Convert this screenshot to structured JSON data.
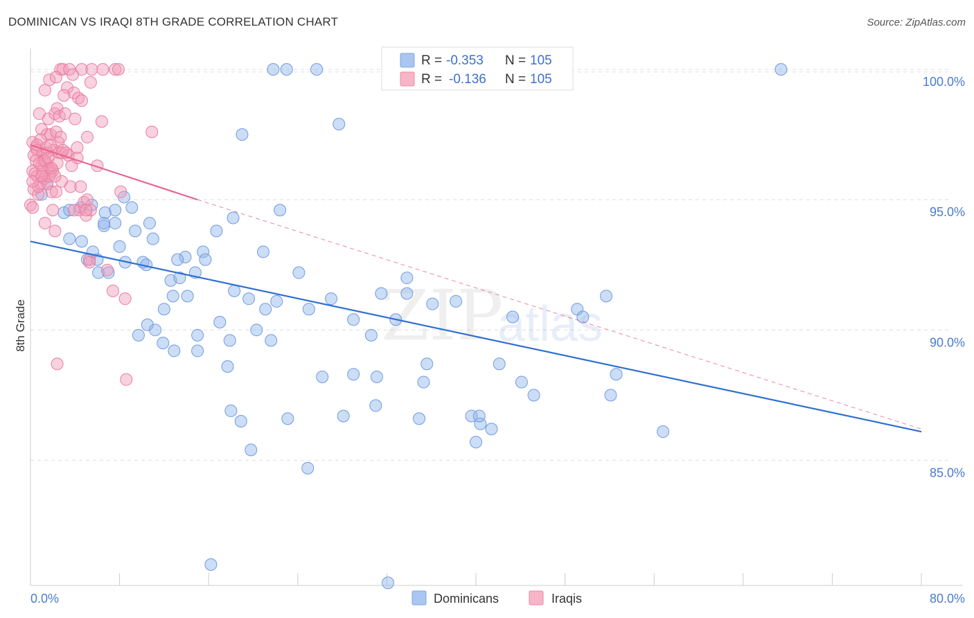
{
  "header": {
    "title": "DOMINICAN VS IRAQI 8TH GRADE CORRELATION CHART",
    "source": "Source: ZipAtlas.com"
  },
  "watermark": {
    "zip": "ZIP",
    "atlas": "atlas"
  },
  "legend": {
    "r_label": "R =",
    "n_label": "N =",
    "entries": [
      {
        "r": "-0.353",
        "n": "105",
        "color": "#a9c6f0"
      },
      {
        "r": "-0.136",
        "n": "105",
        "color": "#f7b6c8"
      }
    ]
  },
  "bottom_legend": [
    {
      "label": "Dominicans",
      "color": "#a9c6f0"
    },
    {
      "label": "Iraqis",
      "color": "#f7b6c8"
    }
  ],
  "colors": {
    "blue_point": "#8fb4ea",
    "blue_line": "#2f6fd0",
    "pink_point": "#f29bb7",
    "pink_line": "#e8668f",
    "grid": "#dddddd",
    "axis_text": "#4a7bd0"
  },
  "chart_data": {
    "type": "scatter",
    "title": "DOMINICAN VS IRAQI 8TH GRADE CORRELATION CHART",
    "xlabel": "",
    "ylabel": "8th Grade",
    "xlim": [
      0,
      80
    ],
    "ylim": [
      80.2,
      100.8
    ],
    "x_tick_labels": [
      "0.0%",
      "80.0%"
    ],
    "y_ticks": [
      85,
      90,
      95,
      100
    ],
    "y_tick_labels": [
      "85.0%",
      "90.0%",
      "95.0%",
      "100.0%"
    ],
    "grid": true,
    "series": [
      {
        "name": "Dominicans",
        "r": -0.353,
        "n": 105,
        "trend": {
          "x": [
            0,
            80
          ],
          "y": [
            93.4,
            86.1
          ],
          "style": "solid"
        },
        "points": [
          [
            21.8,
            100
          ],
          [
            23.0,
            100
          ],
          [
            25.7,
            100
          ],
          [
            32.6,
            100
          ],
          [
            67.4,
            100
          ],
          [
            27.7,
            97.9
          ],
          [
            19.0,
            97.5
          ],
          [
            1.5,
            95.6
          ],
          [
            1.0,
            95.2
          ],
          [
            8.4,
            95.1
          ],
          [
            3.0,
            94.5
          ],
          [
            3.5,
            94.6
          ],
          [
            4.5,
            94.7
          ],
          [
            5.5,
            94.8
          ],
          [
            7.6,
            94.6
          ],
          [
            9.1,
            94.7
          ],
          [
            6.7,
            94.5
          ],
          [
            18.2,
            94.3
          ],
          [
            22.4,
            94.6
          ],
          [
            6.6,
            94.0
          ],
          [
            7.6,
            94.1
          ],
          [
            9.4,
            93.8
          ],
          [
            10.7,
            94.1
          ],
          [
            11.0,
            93.5
          ],
          [
            16.7,
            93.8
          ],
          [
            3.5,
            93.5
          ],
          [
            4.6,
            93.4
          ],
          [
            8.0,
            93.2
          ],
          [
            15.5,
            93.0
          ],
          [
            20.9,
            93.0
          ],
          [
            5.1,
            92.7
          ],
          [
            6.0,
            92.7
          ],
          [
            6.1,
            92.2
          ],
          [
            8.5,
            92.6
          ],
          [
            10.1,
            92.6
          ],
          [
            13.9,
            92.8
          ],
          [
            15.7,
            92.7
          ],
          [
            7.0,
            92.2
          ],
          [
            12.6,
            91.9
          ],
          [
            13.4,
            92.0
          ],
          [
            14.8,
            92.2
          ],
          [
            24.1,
            92.2
          ],
          [
            33.8,
            92.0
          ],
          [
            12.8,
            91.3
          ],
          [
            14.1,
            91.3
          ],
          [
            19.6,
            91.2
          ],
          [
            22.1,
            91.1
          ],
          [
            31.5,
            91.4
          ],
          [
            33.8,
            91.4
          ],
          [
            38.2,
            91.1
          ],
          [
            49.1,
            90.8
          ],
          [
            49.6,
            90.5
          ],
          [
            51.7,
            91.3
          ],
          [
            12.0,
            90.8
          ],
          [
            21.1,
            90.8
          ],
          [
            25.0,
            90.8
          ],
          [
            10.5,
            90.2
          ],
          [
            11.2,
            90.0
          ],
          [
            17.0,
            90.3
          ],
          [
            20.3,
            90.0
          ],
          [
            29.0,
            90.4
          ],
          [
            32.8,
            90.4
          ],
          [
            9.7,
            89.8
          ],
          [
            15.0,
            89.8
          ],
          [
            30.6,
            89.8
          ],
          [
            11.9,
            89.5
          ],
          [
            12.9,
            89.2
          ],
          [
            17.9,
            89.6
          ],
          [
            21.6,
            89.6
          ],
          [
            15.0,
            89.2
          ],
          [
            17.7,
            88.6
          ],
          [
            26.2,
            88.2
          ],
          [
            29.0,
            88.3
          ],
          [
            31.1,
            88.2
          ],
          [
            35.6,
            88.7
          ],
          [
            42.1,
            88.7
          ],
          [
            35.3,
            88.0
          ],
          [
            44.1,
            88.0
          ],
          [
            45.2,
            87.5
          ],
          [
            52.1,
            87.5
          ],
          [
            52.6,
            88.3
          ],
          [
            31.0,
            87.1
          ],
          [
            18.0,
            86.9
          ],
          [
            18.9,
            86.5
          ],
          [
            23.1,
            86.6
          ],
          [
            28.1,
            86.7
          ],
          [
            34.9,
            86.6
          ],
          [
            39.6,
            86.7
          ],
          [
            40.4,
            86.4
          ],
          [
            40.3,
            86.7
          ],
          [
            41.4,
            86.2
          ],
          [
            40.0,
            85.7
          ],
          [
            56.8,
            86.1
          ],
          [
            19.8,
            85.4
          ],
          [
            24.9,
            84.7
          ],
          [
            10.4,
            92.5
          ],
          [
            13.2,
            92.7
          ],
          [
            6.6,
            94.1
          ],
          [
            18.3,
            91.5
          ],
          [
            5.6,
            93.0
          ],
          [
            43.3,
            90.5
          ],
          [
            27.0,
            91.2
          ],
          [
            36.1,
            91.0
          ],
          [
            16.2,
            81.0
          ],
          [
            32.1,
            80.3
          ]
        ]
      },
      {
        "name": "Iraqis",
        "r": -0.136,
        "n": 105,
        "trend": {
          "x": [
            0,
            15
          ],
          "y": [
            97.1,
            95.0
          ],
          "style": "solid",
          "extension": {
            "x": [
              15,
              80
            ],
            "y": [
              95.0,
              86.2
            ],
            "style": "dashed"
          }
        },
        "points": [
          [
            2.7,
            100
          ],
          [
            2.9,
            100
          ],
          [
            3.5,
            100
          ],
          [
            4.6,
            100
          ],
          [
            5.5,
            100
          ],
          [
            6.5,
            100
          ],
          [
            7.6,
            100
          ],
          [
            7.9,
            100
          ],
          [
            1.7,
            99.6
          ],
          [
            2.3,
            99.7
          ],
          [
            3.8,
            99.8
          ],
          [
            5.4,
            99.5
          ],
          [
            3.3,
            99.3
          ],
          [
            3.9,
            99.1
          ],
          [
            4.3,
            98.9
          ],
          [
            4.6,
            98.8
          ],
          [
            0.8,
            98.3
          ],
          [
            1.6,
            98.1
          ],
          [
            2.2,
            98.3
          ],
          [
            2.4,
            98.5
          ],
          [
            2.6,
            98.2
          ],
          [
            3.1,
            98.3
          ],
          [
            6.4,
            98.0
          ],
          [
            10.9,
            97.6
          ],
          [
            1.0,
            97.7
          ],
          [
            1.5,
            97.5
          ],
          [
            0.2,
            97.2
          ],
          [
            0.5,
            97.0
          ],
          [
            0.9,
            97.3
          ],
          [
            1.8,
            97.5
          ],
          [
            2.5,
            97.2
          ],
          [
            5.1,
            97.4
          ],
          [
            0.3,
            96.7
          ],
          [
            0.6,
            96.9
          ],
          [
            1.1,
            96.8
          ],
          [
            1.5,
            96.8
          ],
          [
            2.1,
            96.9
          ],
          [
            2.6,
            96.8
          ],
          [
            2.8,
            96.8
          ],
          [
            3.4,
            96.7
          ],
          [
            4.2,
            96.6
          ],
          [
            0.5,
            96.5
          ],
          [
            1.0,
            96.3
          ],
          [
            1.4,
            96.4
          ],
          [
            1.7,
            96.2
          ],
          [
            0.2,
            96.1
          ],
          [
            0.6,
            95.9
          ],
          [
            1.2,
            95.8
          ],
          [
            1.8,
            96.0
          ],
          [
            0.9,
            95.6
          ],
          [
            1.5,
            95.6
          ],
          [
            2.8,
            95.7
          ],
          [
            3.6,
            95.5
          ],
          [
            6.0,
            96.3
          ],
          [
            0.3,
            95.4
          ],
          [
            0.7,
            95.2
          ],
          [
            1.9,
            95.3
          ],
          [
            2.3,
            95.3
          ],
          [
            8.1,
            95.3
          ],
          [
            0.0,
            94.8
          ],
          [
            0.2,
            94.7
          ],
          [
            2.0,
            94.6
          ],
          [
            4.4,
            94.6
          ],
          [
            4.8,
            94.9
          ],
          [
            5.0,
            94.4
          ],
          [
            5.4,
            94.6
          ],
          [
            5.1,
            95.0
          ],
          [
            3.9,
            94.6
          ],
          [
            1.3,
            94.1
          ],
          [
            2.2,
            93.8
          ],
          [
            0.7,
            95.5
          ],
          [
            2.0,
            96.1
          ],
          [
            1.2,
            96.5
          ],
          [
            1.7,
            95.9
          ],
          [
            2.4,
            96.4
          ],
          [
            0.4,
            96.0
          ],
          [
            1.1,
            96.1
          ],
          [
            0.6,
            97.1
          ],
          [
            1.4,
            97.0
          ],
          [
            3.2,
            96.8
          ],
          [
            2.9,
            96.9
          ],
          [
            2.3,
            97.6
          ],
          [
            1.8,
            97.1
          ],
          [
            1.3,
            96.5
          ],
          [
            0.8,
            96.4
          ],
          [
            1.6,
            96.6
          ],
          [
            1.0,
            95.9
          ],
          [
            3.7,
            96.3
          ],
          [
            4.5,
            95.5
          ],
          [
            0.2,
            95.7
          ],
          [
            1.9,
            96.2
          ],
          [
            2.2,
            95.9
          ],
          [
            5.0,
            94.6
          ],
          [
            5.3,
            92.7
          ],
          [
            6.9,
            92.3
          ],
          [
            5.3,
            92.6
          ],
          [
            7.4,
            91.5
          ],
          [
            8.5,
            91.2
          ],
          [
            2.4,
            88.7
          ],
          [
            8.6,
            88.1
          ],
          [
            4.2,
            97.0
          ],
          [
            2.7,
            97.4
          ],
          [
            3.0,
            99.0
          ],
          [
            1.3,
            99.2
          ],
          [
            4.0,
            98.1
          ]
        ]
      }
    ]
  }
}
